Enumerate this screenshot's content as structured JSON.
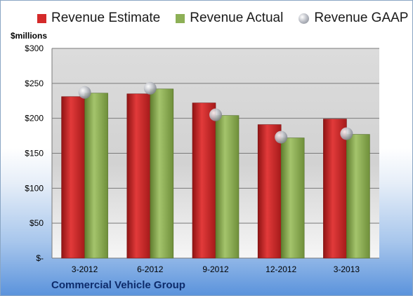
{
  "legend": {
    "estimate_label": "Revenue Estimate",
    "actual_label": "Revenue Actual",
    "gaap_label": "Revenue GAAP"
  },
  "colors": {
    "estimate": "#d42a2a",
    "actual": "#8db056",
    "gaap": "#b9bcc4"
  },
  "footer": {
    "company": "Commercial Vehicle Group"
  },
  "chart_data": {
    "type": "bar",
    "ylabel": "$millions",
    "ylim": [
      0,
      300
    ],
    "yticks": [
      0,
      50,
      100,
      150,
      200,
      250,
      300
    ],
    "ytick_labels": [
      "$-",
      "$50",
      "$100",
      "$150",
      "$200",
      "$250",
      "$300"
    ],
    "grid": true,
    "legend_position": "top",
    "categories": [
      "3-2012",
      "6-2012",
      "9-2012",
      "12-2012",
      "3-2013"
    ],
    "series": [
      {
        "name": "Revenue Estimate",
        "type": "bar",
        "values": [
          231,
          235,
          222,
          191,
          199
        ]
      },
      {
        "name": "Revenue Actual",
        "type": "bar",
        "values": [
          236,
          242,
          204,
          172,
          177
        ]
      },
      {
        "name": "Revenue GAAP",
        "type": "scatter",
        "values": [
          237,
          243,
          205,
          173,
          178
        ]
      }
    ]
  }
}
